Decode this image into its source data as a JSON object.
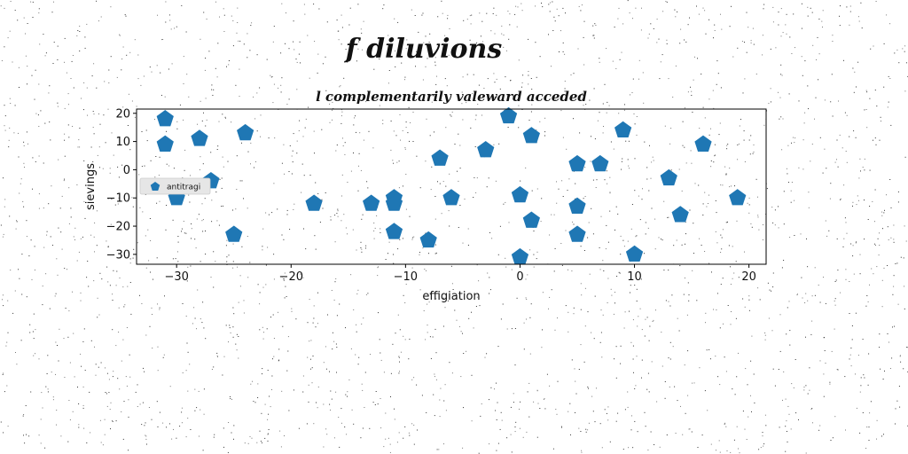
{
  "suptitle": "f diluvions",
  "chart_data": {
    "type": "scatter",
    "title": "l complementarily valeward acceded",
    "xlabel": "effigiation",
    "ylabel": "sievings",
    "xlim": [
      -33.5,
      21.5
    ],
    "ylim": [
      -33.5,
      21.5
    ],
    "xticks": [
      -30,
      -20,
      -10,
      0,
      10,
      20
    ],
    "yticks": [
      -30,
      -20,
      -10,
      0,
      10,
      20
    ],
    "grid": false,
    "legend_position": "center-left",
    "marker": "pentagon",
    "color": "#1f77b4",
    "series": [
      {
        "name": "antitragi",
        "points": [
          [
            -31,
            18
          ],
          [
            -31,
            9
          ],
          [
            -28,
            11
          ],
          [
            -24,
            13
          ],
          [
            -27,
            -4
          ],
          [
            -30,
            -10
          ],
          [
            -25,
            -23
          ],
          [
            -18,
            -12
          ],
          [
            -13,
            -12
          ],
          [
            -11,
            -10
          ],
          [
            -11,
            -12
          ],
          [
            -11,
            -22
          ],
          [
            -8,
            -25
          ],
          [
            -7,
            4
          ],
          [
            -6,
            -10
          ],
          [
            -3,
            7
          ],
          [
            -1,
            19
          ],
          [
            1,
            12
          ],
          [
            0,
            -9
          ],
          [
            1,
            -18
          ],
          [
            0,
            -31
          ],
          [
            5,
            2
          ],
          [
            5,
            -13
          ],
          [
            5,
            -23
          ],
          [
            7,
            2
          ],
          [
            9,
            14
          ],
          [
            10,
            -30
          ],
          [
            13,
            -3
          ],
          [
            14,
            -16
          ],
          [
            16,
            9
          ],
          [
            19,
            -10
          ]
        ]
      }
    ]
  }
}
